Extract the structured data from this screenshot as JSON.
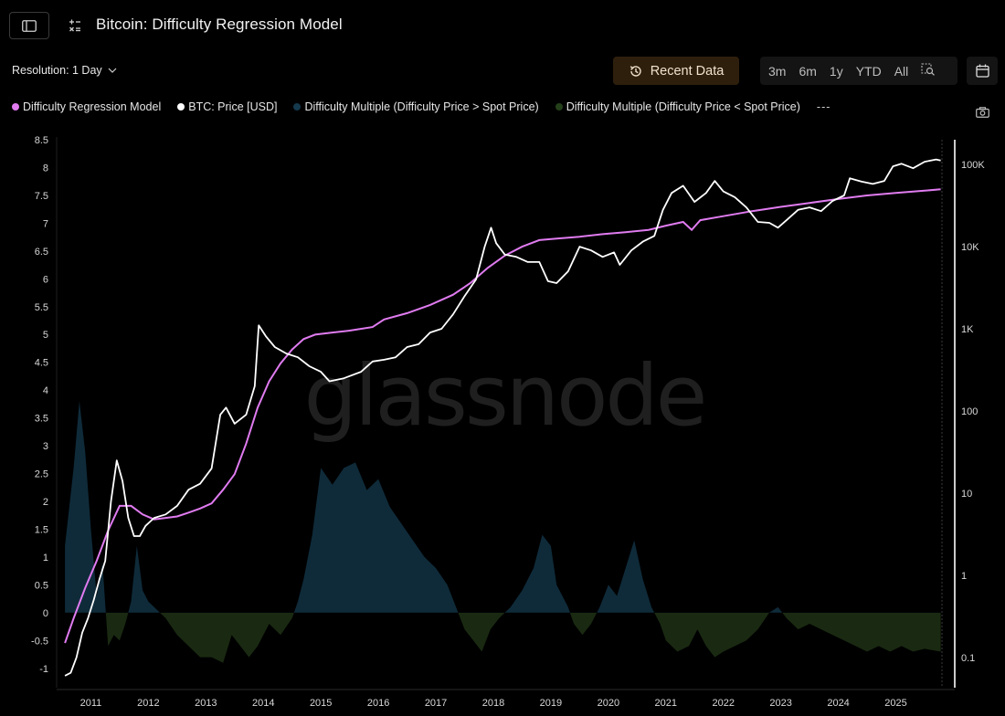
{
  "header": {
    "title": "Bitcoin: Difficulty Regression Model",
    "resolution_label": "Resolution: 1 Day",
    "recent_data_label": "Recent Data",
    "ranges": [
      "3m",
      "6m",
      "1y",
      "YTD",
      "All"
    ]
  },
  "colors": {
    "regression": "#e07bf0",
    "price": "#ffffff",
    "multiple_above": "#0f2b3a",
    "multiple_below": "#1a2a12",
    "accent_button": "#2e1f0d"
  },
  "legend": {
    "items": [
      {
        "label": "Difficulty Regression Model",
        "color": "#e07bf0"
      },
      {
        "label": "BTC: Price [USD]",
        "color": "#ffffff"
      },
      {
        "label": "Difficulty Multiple (Difficulty Price > Spot Price)",
        "color": "#15394d"
      },
      {
        "label": "Difficulty Multiple (Difficulty Price < Spot Price)",
        "color": "#24401a"
      }
    ],
    "more": "---"
  },
  "chart_data": {
    "type": "line",
    "watermark": "glassnode",
    "x_ticks": [
      "2011",
      "2012",
      "2013",
      "2014",
      "2015",
      "2016",
      "2017",
      "2018",
      "2019",
      "2020",
      "2021",
      "2022",
      "2023",
      "2024",
      "2025"
    ],
    "xlim": [
      2010.5,
      2025.85
    ],
    "left_axis": {
      "ticks": [
        "8.5",
        "8",
        "7.5",
        "7",
        "6.5",
        "6",
        "5.5",
        "5",
        "4.5",
        "4",
        "3.5",
        "3",
        "2.5",
        "2",
        "1.5",
        "1",
        "0.5",
        "0",
        "-0.5",
        "-1"
      ],
      "ylim": [
        -1.25,
        8.5
      ]
    },
    "right_axis": {
      "scale": "log",
      "ticks": [
        "100K",
        "10K",
        "1K",
        "100",
        "10",
        "1",
        "0.1"
      ],
      "tick_values": [
        100000,
        10000,
        1000,
        100,
        10,
        1,
        0.1
      ],
      "ylim": [
        0.05,
        200000
      ]
    },
    "series": [
      {
        "name": "BTC: Price [USD]",
        "axis": "right",
        "x": [
          2010.55,
          2010.65,
          2010.75,
          2010.85,
          2010.95,
          2011.05,
          2011.15,
          2011.25,
          2011.35,
          2011.45,
          2011.55,
          2011.65,
          2011.75,
          2011.85,
          2011.95,
          2012.1,
          2012.3,
          2012.5,
          2012.7,
          2012.9,
          2013.1,
          2013.25,
          2013.35,
          2013.5,
          2013.7,
          2013.85,
          2013.92,
          2014.05,
          2014.2,
          2014.4,
          2014.6,
          2014.8,
          2015.0,
          2015.15,
          2015.4,
          2015.7,
          2015.9,
          2016.1,
          2016.3,
          2016.5,
          2016.7,
          2016.9,
          2017.1,
          2017.3,
          2017.5,
          2017.7,
          2017.85,
          2017.96,
          2018.05,
          2018.2,
          2018.4,
          2018.6,
          2018.8,
          2018.95,
          2019.1,
          2019.3,
          2019.5,
          2019.7,
          2019.9,
          2020.1,
          2020.2,
          2020.4,
          2020.6,
          2020.8,
          2020.95,
          2021.1,
          2021.3,
          2021.5,
          2021.7,
          2021.85,
          2022.0,
          2022.2,
          2022.4,
          2022.6,
          2022.8,
          2022.95,
          2023.1,
          2023.3,
          2023.5,
          2023.7,
          2023.9,
          2024.1,
          2024.2,
          2024.4,
          2024.6,
          2024.8,
          2024.95,
          2025.1,
          2025.3,
          2025.5,
          2025.7,
          2025.78
        ],
        "values": [
          0.06,
          0.065,
          0.1,
          0.2,
          0.3,
          0.5,
          0.9,
          1.5,
          8,
          25,
          14,
          5,
          3,
          3,
          4,
          5,
          5.5,
          7,
          11,
          13,
          20,
          90,
          110,
          70,
          90,
          200,
          1100,
          800,
          600,
          500,
          450,
          350,
          300,
          230,
          250,
          300,
          400,
          420,
          450,
          600,
          650,
          900,
          1000,
          1500,
          2500,
          4000,
          10000,
          17000,
          11000,
          8000,
          7500,
          6500,
          6500,
          3800,
          3600,
          5000,
          10000,
          9000,
          7500,
          8500,
          6000,
          9000,
          11500,
          13500,
          28000,
          45000,
          55000,
          35000,
          45000,
          63000,
          47000,
          40000,
          30000,
          20000,
          19500,
          17000,
          21000,
          28000,
          30000,
          27000,
          36000,
          42000,
          68000,
          62000,
          58000,
          63000,
          95000,
          102000,
          90000,
          108000,
          115000,
          112000
        ]
      },
      {
        "name": "Difficulty Regression Model",
        "axis": "right",
        "x": [
          2010.55,
          2010.7,
          2010.9,
          2011.1,
          2011.3,
          2011.5,
          2011.7,
          2011.9,
          2012.1,
          2012.3,
          2012.5,
          2012.7,
          2012.9,
          2013.1,
          2013.3,
          2013.5,
          2013.7,
          2013.9,
          2014.1,
          2014.3,
          2014.5,
          2014.7,
          2014.9,
          2015.2,
          2015.5,
          2015.9,
          2016.1,
          2016.5,
          2016.9,
          2017.3,
          2017.6,
          2017.9,
          2018.2,
          2018.5,
          2018.8,
          2019.1,
          2019.5,
          2019.9,
          2020.3,
          2020.7,
          2021.0,
          2021.3,
          2021.45,
          2021.6,
          2022.0,
          2022.5,
          2023.0,
          2023.5,
          2024.0,
          2024.5,
          2025.0,
          2025.5,
          2025.78
        ],
        "values": [
          0.15,
          0.3,
          0.7,
          1.5,
          3.5,
          7,
          7,
          5.5,
          4.8,
          5,
          5.2,
          5.8,
          6.5,
          7.5,
          11,
          17,
          40,
          110,
          230,
          380,
          560,
          750,
          850,
          900,
          950,
          1050,
          1300,
          1550,
          1950,
          2600,
          3600,
          5500,
          7800,
          10000,
          12000,
          12500,
          13200,
          14200,
          15000,
          16000,
          18000,
          20000,
          16000,
          21000,
          23500,
          27000,
          30500,
          34000,
          38000,
          42000,
          45000,
          48000,
          50000
        ]
      }
    ],
    "multiple": {
      "name_above": "Difficulty Multiple (Difficulty Price > Spot Price)",
      "name_below": "Difficulty Multiple (Difficulty Price < Spot Price)",
      "axis": "left",
      "x": [
        2010.55,
        2010.7,
        2010.8,
        2010.9,
        2011.0,
        2011.1,
        2011.2,
        2011.3,
        2011.4,
        2011.5,
        2011.6,
        2011.7,
        2011.8,
        2011.9,
        2012.0,
        2012.1,
        2012.3,
        2012.5,
        2012.7,
        2012.9,
        2013.1,
        2013.3,
        2013.45,
        2013.6,
        2013.75,
        2013.9,
        2014.1,
        2014.3,
        2014.5,
        2014.6,
        2014.7,
        2014.85,
        2015.0,
        2015.2,
        2015.4,
        2015.6,
        2015.8,
        2016.0,
        2016.2,
        2016.4,
        2016.6,
        2016.8,
        2017.0,
        2017.2,
        2017.35,
        2017.5,
        2017.65,
        2017.8,
        2017.95,
        2018.1,
        2018.3,
        2018.5,
        2018.7,
        2018.85,
        2019.0,
        2019.1,
        2019.3,
        2019.4,
        2019.55,
        2019.7,
        2019.85,
        2020.0,
        2020.15,
        2020.3,
        2020.45,
        2020.6,
        2020.75,
        2020.9,
        2021.0,
        2021.2,
        2021.4,
        2021.55,
        2021.7,
        2021.85,
        2022.0,
        2022.2,
        2022.4,
        2022.6,
        2022.8,
        2022.95,
        2023.1,
        2023.3,
        2023.5,
        2023.7,
        2023.9,
        2024.1,
        2024.3,
        2024.5,
        2024.7,
        2024.9,
        2025.1,
        2025.3,
        2025.5,
        2025.78
      ],
      "values": [
        1.2,
        2.6,
        3.8,
        2.9,
        1.5,
        0.3,
        0.9,
        -0.6,
        -0.4,
        -0.5,
        -0.2,
        0.2,
        1.2,
        0.4,
        0.2,
        0.1,
        -0.1,
        -0.4,
        -0.6,
        -0.8,
        -0.8,
        -0.9,
        -0.4,
        -0.6,
        -0.8,
        -0.6,
        -0.2,
        -0.4,
        -0.1,
        0.2,
        0.6,
        1.4,
        2.6,
        2.3,
        2.6,
        2.7,
        2.2,
        2.4,
        1.9,
        1.6,
        1.3,
        1.0,
        0.8,
        0.5,
        0.1,
        -0.3,
        -0.5,
        -0.7,
        -0.3,
        -0.1,
        0.1,
        0.4,
        0.8,
        1.4,
        1.2,
        0.5,
        0.1,
        -0.2,
        -0.4,
        -0.2,
        0.1,
        0.5,
        0.3,
        0.8,
        1.3,
        0.6,
        0.1,
        -0.2,
        -0.5,
        -0.7,
        -0.6,
        -0.3,
        -0.6,
        -0.8,
        -0.7,
        -0.6,
        -0.5,
        -0.3,
        0.0,
        0.1,
        -0.1,
        -0.3,
        -0.2,
        -0.3,
        -0.4,
        -0.5,
        -0.6,
        -0.7,
        -0.6,
        -0.7,
        -0.6,
        -0.7,
        -0.65,
        -0.7
      ]
    }
  }
}
